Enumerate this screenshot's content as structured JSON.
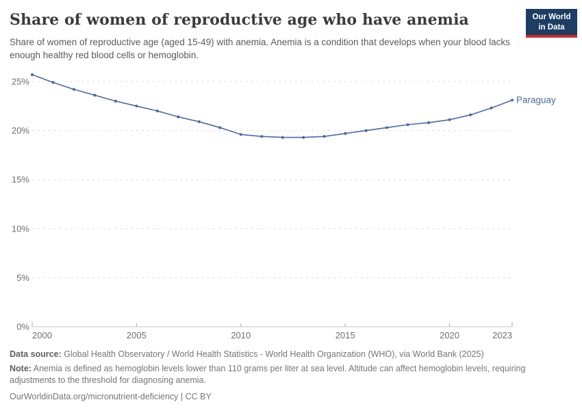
{
  "header": {
    "title": "Share of women of reproductive age who have anemia",
    "subtitle": "Share of women of reproductive age (aged 15-49) with anemia. Anemia is a condition that develops when your blood lacks enough healthy red blood cells or hemoglobin.",
    "logo": {
      "line1": "Our World",
      "line2": "in Data",
      "bg_color": "#1d3d63",
      "accent_color": "#c2302e"
    }
  },
  "chart_data": {
    "type": "line",
    "title": "Share of women of reproductive age who have anemia",
    "x": [
      2000,
      2001,
      2002,
      2003,
      2004,
      2005,
      2006,
      2007,
      2008,
      2009,
      2010,
      2011,
      2012,
      2013,
      2014,
      2015,
      2016,
      2017,
      2018,
      2019,
      2020,
      2021,
      2022,
      2023
    ],
    "series": [
      {
        "name": "Paraguay",
        "color": "#4c6a9c",
        "values": [
          25.7,
          24.9,
          24.2,
          23.6,
          23.0,
          22.5,
          22.0,
          21.4,
          20.9,
          20.3,
          19.6,
          19.4,
          19.3,
          19.3,
          19.4,
          19.7,
          20.0,
          20.3,
          20.6,
          20.8,
          21.1,
          21.6,
          22.3,
          23.1
        ]
      }
    ],
    "xlim": [
      2000,
      2023
    ],
    "ylim": [
      0,
      26.6
    ],
    "x_ticks": [
      2000,
      2005,
      2010,
      2015,
      2020,
      2023
    ],
    "y_ticks": [
      0,
      5,
      10,
      15,
      20,
      25
    ],
    "y_tick_suffix": "%",
    "grid": "horizontal-dashed",
    "legend_position": "end-of-line-label",
    "end_label": "Paraguay",
    "colors": {
      "gridline": "#dcdcdc",
      "axis_line": "#c4c4c4",
      "axis_tick": "#a9a9a9",
      "tick_text": "#6e6e6e"
    }
  },
  "footer": {
    "data_source_label": "Data source:",
    "data_source": " Global Health Observatory / World Health Statistics - World Health Organization (WHO), via World Bank (2025)",
    "note_label": "Note:",
    "note": " Anemia is defined as hemoglobin levels lower than 110 grams per liter at sea level. Altitude can affect hemoglobin levels, requiring adjustments to the threshold for diagnosing anemia.",
    "attribution": "OurWorldinData.org/micronutrient-deficiency | CC BY"
  }
}
